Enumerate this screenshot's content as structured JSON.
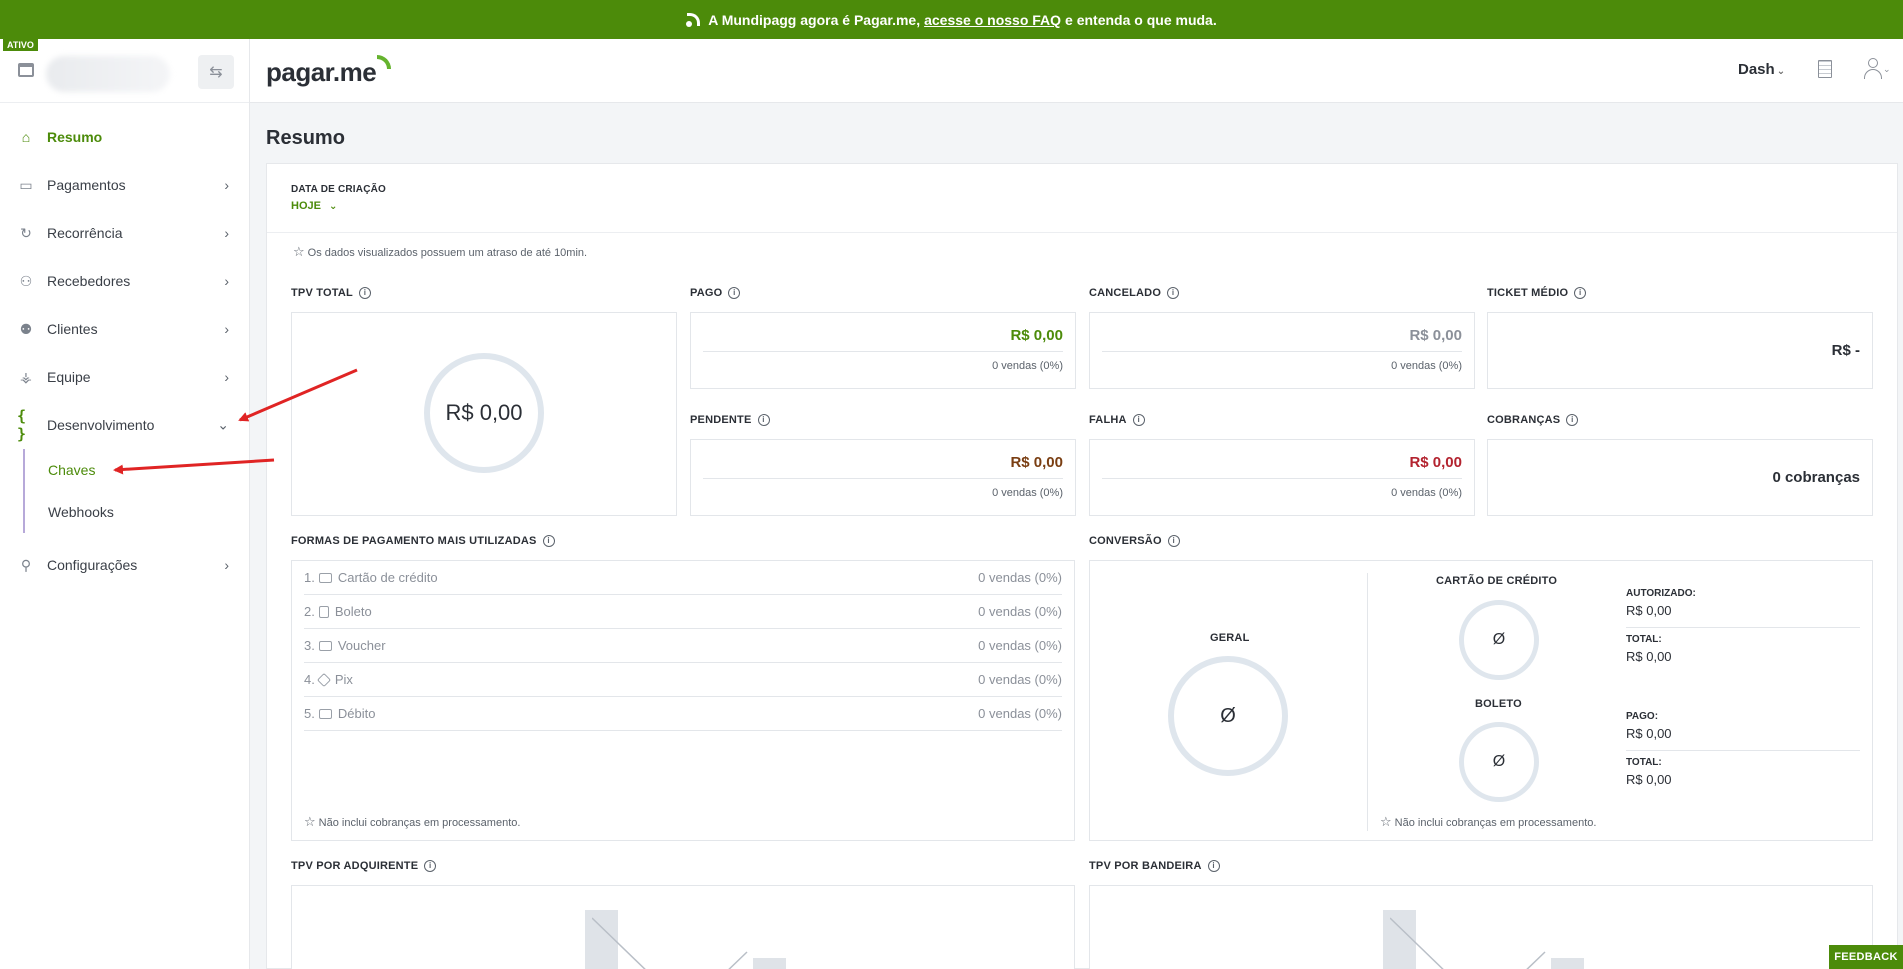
{
  "banner": {
    "prefix": "A Mundipagg agora é Pagar.me,",
    "link": "acesse o nosso FAQ",
    "suffix": "e entenda o que muda."
  },
  "account": {
    "status_badge": "ATIVO"
  },
  "sidebar": {
    "items": [
      {
        "label": "Resumo",
        "icon": "home-icon"
      },
      {
        "label": "Pagamentos",
        "icon": "wallet-icon"
      },
      {
        "label": "Recorrência",
        "icon": "refresh-icon"
      },
      {
        "label": "Recebedores",
        "icon": "users-group-icon"
      },
      {
        "label": "Clientes",
        "icon": "users-icon"
      },
      {
        "label": "Equipe",
        "icon": "team-icon"
      },
      {
        "label": "Desenvolvimento",
        "icon": "code-braces-icon"
      },
      {
        "label": "Configurações",
        "icon": "wrench-icon"
      }
    ],
    "dev_subitems": [
      {
        "label": "Chaves"
      },
      {
        "label": "Webhooks"
      }
    ]
  },
  "header": {
    "brand": "pagar.me",
    "dash_label": "Dash"
  },
  "main": {
    "title": "Resumo",
    "filter": {
      "label": "DATA DE CRIAÇÃO",
      "value": "HOJE"
    },
    "delay_note": "Os dados visualizados possuem um atraso de até 10min.",
    "tpv_total": {
      "title": "TPV TOTAL",
      "value": "R$ 0,00"
    },
    "pago": {
      "title": "PAGO",
      "value": "R$ 0,00",
      "sales": "0 vendas (0%)"
    },
    "cancelado": {
      "title": "CANCELADO",
      "value": "R$ 0,00",
      "sales": "0 vendas (0%)"
    },
    "ticket_medio": {
      "title": "TICKET MÉDIO",
      "value": "R$ -"
    },
    "pendente": {
      "title": "PENDENTE",
      "value": "R$ 0,00",
      "sales": "0 vendas (0%)"
    },
    "falha": {
      "title": "FALHA",
      "value": "R$ 0,00",
      "sales": "0 vendas (0%)"
    },
    "cobrancas": {
      "title": "COBRANÇAS",
      "value": "0 cobranças"
    },
    "payment_methods": {
      "title": "FORMAS DE PAGAMENTO MAIS UTILIZADAS",
      "rows": [
        {
          "num": "1.",
          "label": "Cartão de crédito",
          "count": "0 vendas (0%)"
        },
        {
          "num": "2.",
          "label": "Boleto",
          "count": "0 vendas (0%)"
        },
        {
          "num": "3.",
          "label": "Voucher",
          "count": "0 vendas (0%)"
        },
        {
          "num": "4.",
          "label": "Pix",
          "count": "0 vendas (0%)"
        },
        {
          "num": "5.",
          "label": "Débito",
          "count": "0 vendas (0%)"
        }
      ],
      "note": "Não inclui cobranças em processamento."
    },
    "conversion": {
      "title": "CONVERSÃO",
      "geral_label": "GERAL",
      "empty_symbol": "Ø",
      "credit_label": "CARTÃO DE CRÉDITO",
      "boleto_label": "BOLETO",
      "autorizado_label": "AUTORIZADO:",
      "autorizado_value": "R$ 0,00",
      "total_label": "TOTAL:",
      "total_value": "R$ 0,00",
      "pago_label": "PAGO:",
      "pago_value": "R$ 0,00",
      "total2_label": "TOTAL:",
      "total2_value": "R$ 0,00",
      "note": "Não inclui cobranças em processamento."
    },
    "tpv_adquirente": {
      "title": "TPV POR ADQUIRENTE"
    },
    "tpv_bandeira": {
      "title": "TPV POR BANDEIRA"
    }
  },
  "feedback_label": "FEEDBACK",
  "colors": {
    "brand_green": "#4c8b0a",
    "ring_gray": "#dfe6ed",
    "annotation_red": "#e02424"
  }
}
